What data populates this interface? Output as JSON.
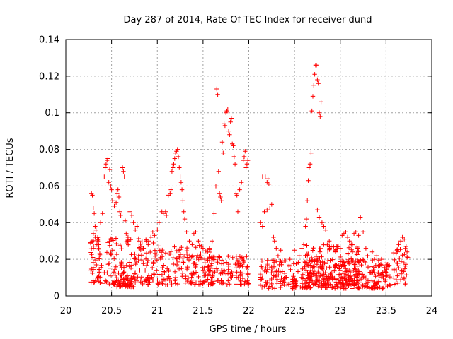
{
  "chart_data": {
    "type": "scatter",
    "title": "Day 287 of 2014, Rate Of TEC Index for receiver dund",
    "xlabel": "GPS time / hours",
    "ylabel": "ROTI / TECUs",
    "xlim": [
      20,
      24
    ],
    "ylim": [
      0,
      0.14
    ],
    "x_ticks": [
      "20",
      "20.5",
      "21",
      "21.5",
      "22",
      "22.5",
      "23",
      "23.5",
      "24"
    ],
    "y_ticks": [
      "0",
      "0.02",
      "0.04",
      "0.06",
      "0.08",
      "0.1",
      "0.12",
      "0.14"
    ],
    "grid": true,
    "marker": "+",
    "marker_color": "#ff0000",
    "series": [
      {
        "name": "ROTI",
        "points": [
          [
            20.28,
            0.056
          ],
          [
            20.29,
            0.055
          ],
          [
            20.3,
            0.048
          ],
          [
            20.31,
            0.045
          ],
          [
            20.32,
            0.038
          ],
          [
            20.33,
            0.036
          ],
          [
            20.3,
            0.034
          ],
          [
            20.32,
            0.032
          ],
          [
            20.35,
            0.03
          ],
          [
            20.34,
            0.028
          ],
          [
            20.3,
            0.026
          ],
          [
            20.36,
            0.031
          ],
          [
            20.38,
            0.04
          ],
          [
            20.4,
            0.045
          ],
          [
            20.42,
            0.065
          ],
          [
            20.43,
            0.07
          ],
          [
            20.44,
            0.072
          ],
          [
            20.45,
            0.074
          ],
          [
            20.46,
            0.075
          ],
          [
            20.48,
            0.069
          ],
          [
            20.47,
            0.062
          ],
          [
            20.49,
            0.06
          ],
          [
            20.5,
            0.058
          ],
          [
            20.51,
            0.052
          ],
          [
            20.53,
            0.049
          ],
          [
            20.55,
            0.051
          ],
          [
            20.56,
            0.056
          ],
          [
            20.57,
            0.058
          ],
          [
            20.58,
            0.054
          ],
          [
            20.59,
            0.046
          ],
          [
            20.6,
            0.044
          ],
          [
            20.62,
            0.07
          ],
          [
            20.63,
            0.068
          ],
          [
            20.64,
            0.065
          ],
          [
            20.65,
            0.041
          ],
          [
            20.66,
            0.034
          ],
          [
            20.68,
            0.032
          ],
          [
            20.7,
            0.046
          ],
          [
            20.72,
            0.044
          ],
          [
            20.74,
            0.04
          ],
          [
            20.76,
            0.036
          ],
          [
            20.78,
            0.038
          ],
          [
            20.8,
            0.03
          ],
          [
            20.82,
            0.027
          ],
          [
            20.85,
            0.026
          ],
          [
            20.88,
            0.03
          ],
          [
            20.9,
            0.028
          ],
          [
            20.93,
            0.032
          ],
          [
            20.95,
            0.035
          ],
          [
            20.97,
            0.033
          ],
          [
            21.0,
            0.036
          ],
          [
            21.02,
            0.04
          ],
          [
            21.05,
            0.046
          ],
          [
            21.07,
            0.045
          ],
          [
            21.09,
            0.046
          ],
          [
            21.1,
            0.044
          ],
          [
            21.12,
            0.055
          ],
          [
            21.14,
            0.056
          ],
          [
            21.15,
            0.058
          ],
          [
            21.16,
            0.068
          ],
          [
            21.17,
            0.07
          ],
          [
            21.18,
            0.072
          ],
          [
            21.19,
            0.075
          ],
          [
            21.2,
            0.078
          ],
          [
            21.21,
            0.079
          ],
          [
            21.22,
            0.08
          ],
          [
            21.23,
            0.076
          ],
          [
            21.24,
            0.07
          ],
          [
            21.25,
            0.065
          ],
          [
            21.26,
            0.062
          ],
          [
            21.27,
            0.058
          ],
          [
            21.28,
            0.052
          ],
          [
            21.29,
            0.046
          ],
          [
            21.3,
            0.042
          ],
          [
            21.32,
            0.035
          ],
          [
            21.35,
            0.03
          ],
          [
            21.38,
            0.028
          ],
          [
            21.4,
            0.034
          ],
          [
            21.42,
            0.035
          ],
          [
            21.45,
            0.03
          ],
          [
            21.48,
            0.027
          ],
          [
            21.5,
            0.026
          ],
          [
            21.52,
            0.023
          ],
          [
            21.55,
            0.024
          ],
          [
            21.57,
            0.026
          ],
          [
            21.6,
            0.03
          ],
          [
            21.62,
            0.045
          ],
          [
            21.64,
            0.06
          ],
          [
            21.65,
            0.113
          ],
          [
            21.66,
            0.11
          ],
          [
            21.67,
            0.068
          ],
          [
            21.68,
            0.056
          ],
          [
            21.69,
            0.054
          ],
          [
            21.7,
            0.052
          ],
          [
            21.71,
            0.084
          ],
          [
            21.72,
            0.078
          ],
          [
            21.73,
            0.094
          ],
          [
            21.74,
            0.093
          ],
          [
            21.75,
            0.1
          ],
          [
            21.76,
            0.101
          ],
          [
            21.77,
            0.102
          ],
          [
            21.78,
            0.09
          ],
          [
            21.79,
            0.088
          ],
          [
            21.8,
            0.095
          ],
          [
            21.81,
            0.097
          ],
          [
            21.82,
            0.083
          ],
          [
            21.83,
            0.082
          ],
          [
            21.84,
            0.076
          ],
          [
            21.85,
            0.072
          ],
          [
            21.86,
            0.056
          ],
          [
            21.87,
            0.055
          ],
          [
            21.88,
            0.046
          ],
          [
            21.9,
            0.058
          ],
          [
            21.92,
            0.062
          ],
          [
            21.94,
            0.074
          ],
          [
            21.95,
            0.076
          ],
          [
            21.96,
            0.079
          ],
          [
            21.97,
            0.07
          ],
          [
            21.98,
            0.072
          ],
          [
            21.99,
            0.074
          ],
          [
            22.15,
            0.065
          ],
          [
            22.18,
            0.065
          ],
          [
            22.2,
            0.062
          ],
          [
            22.21,
            0.064
          ],
          [
            22.22,
            0.061
          ],
          [
            22.13,
            0.04
          ],
          [
            22.15,
            0.038
          ],
          [
            22.17,
            0.046
          ],
          [
            22.2,
            0.047
          ],
          [
            22.23,
            0.048
          ],
          [
            22.25,
            0.05
          ],
          [
            22.27,
            0.032
          ],
          [
            22.28,
            0.03
          ],
          [
            22.3,
            0.026
          ],
          [
            22.32,
            0.022
          ],
          [
            22.35,
            0.025
          ],
          [
            22.4,
            0.019
          ],
          [
            22.45,
            0.02
          ],
          [
            22.5,
            0.025
          ],
          [
            22.55,
            0.022
          ],
          [
            22.58,
            0.026
          ],
          [
            22.6,
            0.028
          ],
          [
            22.62,
            0.038
          ],
          [
            22.63,
            0.042
          ],
          [
            22.64,
            0.052
          ],
          [
            22.65,
            0.063
          ],
          [
            22.66,
            0.07
          ],
          [
            22.67,
            0.072
          ],
          [
            22.68,
            0.078
          ],
          [
            22.69,
            0.101
          ],
          [
            22.7,
            0.109
          ],
          [
            22.71,
            0.115
          ],
          [
            22.72,
            0.121
          ],
          [
            22.73,
            0.126
          ],
          [
            22.74,
            0.126
          ],
          [
            22.75,
            0.118
          ],
          [
            22.76,
            0.116
          ],
          [
            22.77,
            0.1
          ],
          [
            22.78,
            0.098
          ],
          [
            22.79,
            0.106
          ],
          [
            22.75,
            0.047
          ],
          [
            22.77,
            0.043
          ],
          [
            22.8,
            0.04
          ],
          [
            22.82,
            0.038
          ],
          [
            22.84,
            0.036
          ],
          [
            22.88,
            0.03
          ],
          [
            22.9,
            0.027
          ],
          [
            22.95,
            0.024
          ],
          [
            23.0,
            0.026
          ],
          [
            23.02,
            0.033
          ],
          [
            23.04,
            0.034
          ],
          [
            23.06,
            0.035
          ],
          [
            23.08,
            0.032
          ],
          [
            23.1,
            0.03
          ],
          [
            23.12,
            0.028
          ],
          [
            23.15,
            0.034
          ],
          [
            23.17,
            0.035
          ],
          [
            23.2,
            0.033
          ],
          [
            23.22,
            0.043
          ],
          [
            23.25,
            0.035
          ],
          [
            23.28,
            0.026
          ],
          [
            23.3,
            0.022
          ],
          [
            23.35,
            0.024
          ],
          [
            23.4,
            0.022
          ],
          [
            23.45,
            0.02
          ],
          [
            23.5,
            0.018
          ],
          [
            23.52,
            0.016
          ],
          [
            23.62,
            0.025
          ],
          [
            23.64,
            0.028
          ],
          [
            23.66,
            0.03
          ],
          [
            23.68,
            0.032
          ],
          [
            23.7,
            0.031
          ],
          [
            23.72,
            0.027
          ],
          [
            23.73,
            0.024
          ]
        ]
      }
    ]
  }
}
